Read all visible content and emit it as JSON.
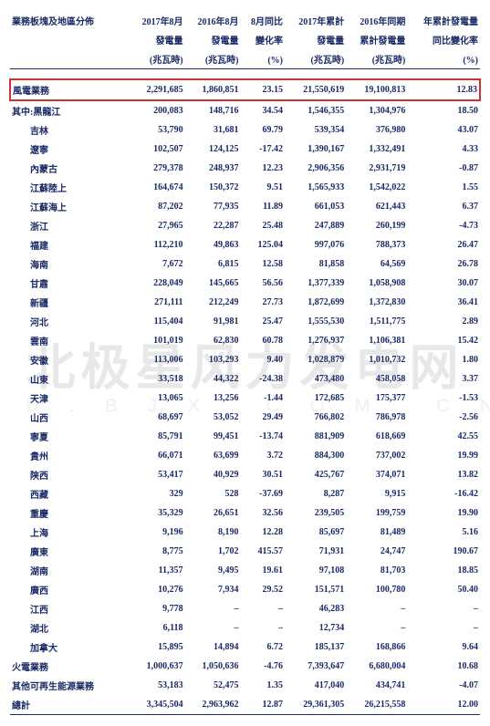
{
  "header": {
    "col0_l1": "業務板塊及地區分佈",
    "col1_l1": "2017年8月",
    "col1_l2": "發電量",
    "col1_unit": "(兆瓦時)",
    "col2_l1": "2016年8月",
    "col2_l2": "發電量",
    "col2_unit": "(兆瓦時)",
    "col3_l1": "8月同比",
    "col3_l2": "變化率",
    "col3_unit": "(%)",
    "col4_l1": "2017年累計",
    "col4_l2": "發電量",
    "col4_unit": "(兆瓦時)",
    "col5_l1": "2016年同期",
    "col5_l2": "累計發電量",
    "col5_unit": "(兆瓦時)",
    "col6_l1": "年累計發電量",
    "col6_l2": "同比變化率",
    "col6_unit": "(%)"
  },
  "highlight": {
    "label": "風電業務",
    "c1": "2,291,685",
    "c2": "1,860,851",
    "c3": "23.15",
    "c4": "21,550,619",
    "c5": "19,100,813",
    "c6": "12.83"
  },
  "prefix_label": "其中:",
  "rows": [
    {
      "label": "黑龍江",
      "c1": "200,083",
      "c2": "148,716",
      "c3": "34.54",
      "c4": "1,546,355",
      "c5": "1,304,976",
      "c6": "18.50"
    },
    {
      "label": "吉林",
      "c1": "53,790",
      "c2": "31,681",
      "c3": "69.79",
      "c4": "539,354",
      "c5": "376,980",
      "c6": "43.07"
    },
    {
      "label": "遼寧",
      "c1": "102,507",
      "c2": "124,125",
      "c3": "-17.42",
      "c4": "1,390,167",
      "c5": "1,332,491",
      "c6": "4.33"
    },
    {
      "label": "內蒙古",
      "c1": "279,378",
      "c2": "248,937",
      "c3": "12.23",
      "c4": "2,906,356",
      "c5": "2,931,719",
      "c6": "-0.87"
    },
    {
      "label": "江蘇陸上",
      "c1": "164,674",
      "c2": "150,372",
      "c3": "9.51",
      "c4": "1,565,933",
      "c5": "1,542,022",
      "c6": "1.55"
    },
    {
      "label": "江蘇海上",
      "c1": "87,202",
      "c2": "77,935",
      "c3": "11.89",
      "c4": "661,053",
      "c5": "621,443",
      "c6": "6.37"
    },
    {
      "label": "浙江",
      "c1": "27,965",
      "c2": "22,287",
      "c3": "25.48",
      "c4": "247,889",
      "c5": "260,199",
      "c6": "-4.73"
    },
    {
      "label": "福建",
      "c1": "112,210",
      "c2": "49,863",
      "c3": "125.04",
      "c4": "997,076",
      "c5": "788,373",
      "c6": "26.47"
    },
    {
      "label": "海南",
      "c1": "7,672",
      "c2": "6,815",
      "c3": "12.58",
      "c4": "81,858",
      "c5": "64,569",
      "c6": "26.78"
    },
    {
      "label": "甘肅",
      "c1": "228,049",
      "c2": "145,665",
      "c3": "56.56",
      "c4": "1,377,339",
      "c5": "1,058,908",
      "c6": "30.07"
    },
    {
      "label": "新疆",
      "c1": "271,111",
      "c2": "212,249",
      "c3": "27.73",
      "c4": "1,872,699",
      "c5": "1,372,830",
      "c6": "36.41"
    },
    {
      "label": "河北",
      "c1": "115,404",
      "c2": "91,981",
      "c3": "25.47",
      "c4": "1,555,530",
      "c5": "1,511,775",
      "c6": "2.89"
    },
    {
      "label": "雲南",
      "c1": "101,019",
      "c2": "62,830",
      "c3": "60.78",
      "c4": "1,276,937",
      "c5": "1,106,381",
      "c6": "15.42"
    },
    {
      "label": "安徽",
      "c1": "113,006",
      "c2": "103,293",
      "c3": "9.40",
      "c4": "1,028,879",
      "c5": "1,010,732",
      "c6": "1.80"
    },
    {
      "label": "山東",
      "c1": "33,518",
      "c2": "44,322",
      "c3": "-24.38",
      "c4": "473,480",
      "c5": "458,058",
      "c6": "3.37"
    },
    {
      "label": "天津",
      "c1": "13,065",
      "c2": "13,256",
      "c3": "-1.44",
      "c4": "172,685",
      "c5": "175,377",
      "c6": "-1.53"
    },
    {
      "label": "山西",
      "c1": "68,697",
      "c2": "53,052",
      "c3": "29.49",
      "c4": "766,802",
      "c5": "786,978",
      "c6": "-2.56"
    },
    {
      "label": "寧夏",
      "c1": "85,791",
      "c2": "99,451",
      "c3": "-13.74",
      "c4": "881,909",
      "c5": "618,669",
      "c6": "42.55"
    },
    {
      "label": "貴州",
      "c1": "66,071",
      "c2": "63,699",
      "c3": "3.72",
      "c4": "884,300",
      "c5": "737,002",
      "c6": "19.99"
    },
    {
      "label": "陝西",
      "c1": "53,417",
      "c2": "40,929",
      "c3": "30.51",
      "c4": "425,767",
      "c5": "374,071",
      "c6": "13.82"
    },
    {
      "label": "西藏",
      "c1": "329",
      "c2": "528",
      "c3": "-37.69",
      "c4": "8,287",
      "c5": "9,915",
      "c6": "-16.42"
    },
    {
      "label": "重慶",
      "c1": "35,329",
      "c2": "26,651",
      "c3": "32.56",
      "c4": "239,505",
      "c5": "199,759",
      "c6": "19.90"
    },
    {
      "label": "上海",
      "c1": "9,196",
      "c2": "8,190",
      "c3": "12.28",
      "c4": "85,697",
      "c5": "81,489",
      "c6": "5.16"
    },
    {
      "label": "廣東",
      "c1": "8,775",
      "c2": "1,702",
      "c3": "415.57",
      "c4": "71,931",
      "c5": "24,747",
      "c6": "190.67"
    },
    {
      "label": "湖南",
      "c1": "11,357",
      "c2": "9,495",
      "c3": "19.61",
      "c4": "97,108",
      "c5": "81,703",
      "c6": "18.85"
    },
    {
      "label": "廣西",
      "c1": "10,276",
      "c2": "7,934",
      "c3": "29.52",
      "c4": "151,571",
      "c5": "100,780",
      "c6": "50.40"
    },
    {
      "label": "江西",
      "c1": "9,778",
      "c2": "–",
      "c3": "–",
      "c4": "46,283",
      "c5": "–",
      "c6": "–"
    },
    {
      "label": "湖北",
      "c1": "6,118",
      "c2": "–",
      "c3": "–",
      "c4": "12,734",
      "c5": "–",
      "c6": "–"
    },
    {
      "label": "加拿大",
      "c1": "15,895",
      "c2": "14,894",
      "c3": "6.72",
      "c4": "185,137",
      "c5": "168,866",
      "c6": "9.64"
    }
  ],
  "totals": [
    {
      "label": "火電業務",
      "c1": "1,000,637",
      "c2": "1,050,636",
      "c3": "-4.76",
      "c4": "7,393,647",
      "c5": "6,680,004",
      "c6": "10.68"
    },
    {
      "label": "其他可再生能源業務",
      "c1": "53,183",
      "c2": "52,475",
      "c3": "1.35",
      "c4": "417,040",
      "c5": "434,741",
      "c6": "-4.07"
    },
    {
      "label": "總計",
      "c1": "3,345,504",
      "c2": "2,963,962",
      "c3": "12.87",
      "c4": "29,361,305",
      "c5": "26,215,558",
      "c6": "12.00"
    }
  ],
  "watermark": "北极星风力发电网",
  "watermark2": "F D . B J X . C O M . C N"
}
